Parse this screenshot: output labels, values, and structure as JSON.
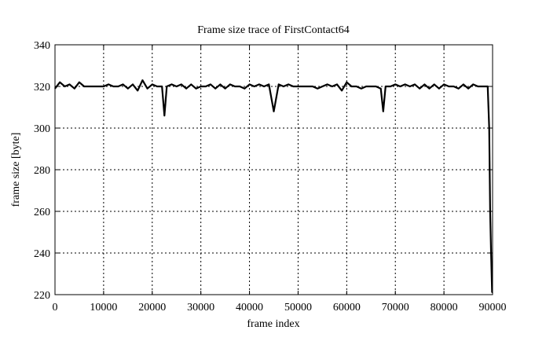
{
  "chart_data": {
    "type": "line",
    "title": "Frame size trace of FirstContact64",
    "xlabel": "frame index",
    "ylabel": "frame size [byte]",
    "xlim": [
      0,
      90000
    ],
    "ylim": [
      220,
      340
    ],
    "xticks": [
      0,
      10000,
      20000,
      30000,
      40000,
      50000,
      60000,
      70000,
      80000,
      90000
    ],
    "yticks": [
      220,
      240,
      260,
      280,
      300,
      320,
      340
    ],
    "grid": true,
    "line_color": "#000000",
    "points": [
      [
        0,
        319
      ],
      [
        1000,
        322
      ],
      [
        2000,
        320
      ],
      [
        3000,
        321
      ],
      [
        4000,
        319
      ],
      [
        5000,
        322
      ],
      [
        6000,
        320
      ],
      [
        7000,
        320
      ],
      [
        8000,
        320
      ],
      [
        9000,
        320
      ],
      [
        10000,
        320
      ],
      [
        11000,
        321
      ],
      [
        12000,
        320
      ],
      [
        13000,
        320
      ],
      [
        14000,
        321
      ],
      [
        15000,
        319
      ],
      [
        16000,
        321
      ],
      [
        17000,
        318
      ],
      [
        18000,
        323
      ],
      [
        19000,
        319
      ],
      [
        20000,
        321
      ],
      [
        21000,
        320
      ],
      [
        22000,
        320
      ],
      [
        22500,
        306
      ],
      [
        23000,
        320
      ],
      [
        24000,
        321
      ],
      [
        25000,
        320
      ],
      [
        26000,
        321
      ],
      [
        27000,
        319
      ],
      [
        28000,
        321
      ],
      [
        29000,
        319
      ],
      [
        30000,
        320
      ],
      [
        31000,
        320
      ],
      [
        32000,
        321
      ],
      [
        33000,
        319
      ],
      [
        34000,
        321
      ],
      [
        35000,
        319
      ],
      [
        36000,
        321
      ],
      [
        37000,
        320
      ],
      [
        38000,
        320
      ],
      [
        39000,
        319
      ],
      [
        40000,
        321
      ],
      [
        41000,
        320
      ],
      [
        42000,
        321
      ],
      [
        43000,
        320
      ],
      [
        44000,
        321
      ],
      [
        45000,
        308
      ],
      [
        46000,
        321
      ],
      [
        47000,
        320
      ],
      [
        48000,
        321
      ],
      [
        49000,
        320
      ],
      [
        50000,
        320
      ],
      [
        51000,
        320
      ],
      [
        52000,
        320
      ],
      [
        53000,
        320
      ],
      [
        54000,
        319
      ],
      [
        55000,
        320
      ],
      [
        56000,
        321
      ],
      [
        57000,
        320
      ],
      [
        58000,
        321
      ],
      [
        59000,
        318
      ],
      [
        60000,
        322
      ],
      [
        61000,
        320
      ],
      [
        62000,
        320
      ],
      [
        63000,
        319
      ],
      [
        64000,
        320
      ],
      [
        65000,
        320
      ],
      [
        66000,
        320
      ],
      [
        67000,
        319
      ],
      [
        67500,
        308
      ],
      [
        68000,
        320
      ],
      [
        69000,
        320
      ],
      [
        70000,
        321
      ],
      [
        71000,
        320
      ],
      [
        72000,
        321
      ],
      [
        73000,
        320
      ],
      [
        74000,
        321
      ],
      [
        75000,
        319
      ],
      [
        76000,
        321
      ],
      [
        77000,
        319
      ],
      [
        78000,
        321
      ],
      [
        79000,
        319
      ],
      [
        80000,
        321
      ],
      [
        81000,
        320
      ],
      [
        82000,
        320
      ],
      [
        83000,
        319
      ],
      [
        84000,
        321
      ],
      [
        85000,
        319
      ],
      [
        86000,
        321
      ],
      [
        87000,
        320
      ],
      [
        88000,
        320
      ],
      [
        89000,
        320
      ],
      [
        89300,
        300
      ],
      [
        89500,
        260
      ],
      [
        89700,
        240
      ],
      [
        89900,
        221
      ]
    ]
  }
}
